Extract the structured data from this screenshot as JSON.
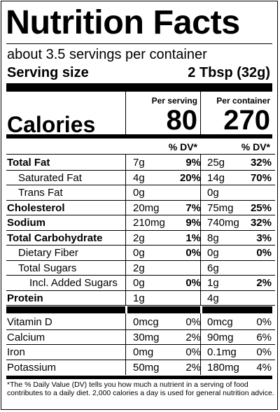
{
  "title": "Nutrition Facts",
  "servings_per_container": "about 3.5 servings per container",
  "serving_size_label": "Serving size",
  "serving_size_value": "2 Tbsp (32g)",
  "column_headers": {
    "per_serving": "Per serving",
    "per_container": "Per container"
  },
  "calories": {
    "label": "Calories",
    "per_serving": "80",
    "per_container": "270"
  },
  "dv_header": "% DV*",
  "nutrients": [
    {
      "name": "Total Fat",
      "bold": true,
      "indent": 0,
      "amount_serving": "7g",
      "dv_serving": "9%",
      "amount_container": "25g",
      "dv_container": "32%"
    },
    {
      "name": "Saturated Fat",
      "bold": false,
      "indent": 1,
      "amount_serving": "4g",
      "dv_serving": "20%",
      "amount_container": "14g",
      "dv_container": "70%"
    },
    {
      "name": "Trans Fat",
      "bold": false,
      "indent": 1,
      "amount_serving": "0g",
      "dv_serving": "",
      "amount_container": "0g",
      "dv_container": ""
    },
    {
      "name": "Cholesterol",
      "bold": true,
      "indent": 0,
      "amount_serving": "20mg",
      "dv_serving": "7%",
      "amount_container": "75mg",
      "dv_container": "25%"
    },
    {
      "name": "Sodium",
      "bold": true,
      "indent": 0,
      "amount_serving": "210mg",
      "dv_serving": "9%",
      "amount_container": "740mg",
      "dv_container": "32%"
    },
    {
      "name": "Total Carbohydrate",
      "bold": true,
      "indent": 0,
      "amount_serving": "2g",
      "dv_serving": "1%",
      "amount_container": "8g",
      "dv_container": "3%"
    },
    {
      "name": "Dietary Fiber",
      "bold": false,
      "indent": 1,
      "amount_serving": "0g",
      "dv_serving": "0%",
      "amount_container": "0g",
      "dv_container": "0%"
    },
    {
      "name": "Total Sugars",
      "bold": false,
      "indent": 1,
      "amount_serving": "2g",
      "dv_serving": "",
      "amount_container": "6g",
      "dv_container": ""
    },
    {
      "name": "Incl. Added Sugars",
      "bold": false,
      "indent": 2,
      "amount_serving": "0g",
      "dv_serving": "0%",
      "amount_container": "1g",
      "dv_container": "2%"
    },
    {
      "name": "Protein",
      "bold": true,
      "indent": 0,
      "amount_serving": "1g",
      "dv_serving": "",
      "amount_container": "4g",
      "dv_container": ""
    }
  ],
  "vitamins": [
    {
      "name": "Vitamin D",
      "amount_serving": "0mcg",
      "dv_serving": "0%",
      "amount_container": "0mcg",
      "dv_container": "0%"
    },
    {
      "name": "Calcium",
      "amount_serving": "30mg",
      "dv_serving": "2%",
      "amount_container": "90mg",
      "dv_container": "6%"
    },
    {
      "name": "Iron",
      "amount_serving": "0mg",
      "dv_serving": "0%",
      "amount_container": "0.1mg",
      "dv_container": "0%"
    },
    {
      "name": "Potassium",
      "amount_serving": "50mg",
      "dv_serving": "2%",
      "amount_container": "180mg",
      "dv_container": "4%"
    }
  ],
  "footnote": "*The % Daily Value (DV) tells you how much a nutrient in a serving of food contributes to a daily diet. 2,000 calories a day is used for general nutrition advice."
}
